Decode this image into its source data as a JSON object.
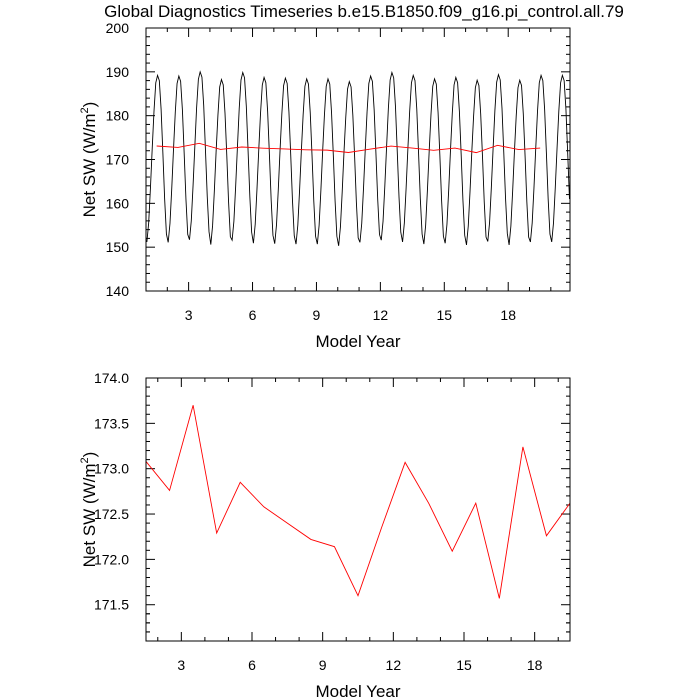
{
  "title": "Global Diagnostics Timeseries b.e15.B1850.f09_g16.pi_control.all.79",
  "colors": {
    "monthly": "#000000",
    "annual": "#ff0000",
    "frame": "#000000"
  },
  "chart_data": [
    {
      "type": "line",
      "xlabel": "Model Year",
      "ylabel": "Net SW (W/m",
      "ylabel_sup": "2",
      "ylabel_close": ")",
      "xlim": [
        1.0,
        20.9
      ],
      "ylim": [
        140,
        200
      ],
      "xticks": [
        3,
        6,
        9,
        12,
        15,
        18
      ],
      "xtick_labels": [
        "3",
        "6",
        "9",
        "12",
        "15",
        "18"
      ],
      "yticks": [
        140,
        150,
        160,
        170,
        180,
        190,
        200
      ],
      "ytick_labels": [
        "140",
        "150",
        "160",
        "170",
        "180",
        "190",
        "200"
      ],
      "series": [
        {
          "key": "monthly",
          "color": "#000000",
          "seasonal_cycle": [
            151.2,
            155.5,
            163.5,
            172.5,
            181.0,
            187.5,
            189.2,
            188.0,
            181.5,
            171.5,
            161.0,
            153.0
          ],
          "year_offsets": [
            0.0,
            -0.1,
            0.5,
            -0.6,
            0.4,
            -0.3,
            -0.4,
            -0.5,
            -0.5,
            -0.9,
            -0.1,
            0.4,
            0.0,
            -0.5,
            -0.3,
            -0.7,
            0.1,
            -0.7,
            0.0,
            0.0
          ],
          "start_year": 1.0,
          "years": 20
        },
        {
          "key": "annual",
          "color": "#ff0000",
          "x": [
            1.5,
            2.5,
            3.5,
            4.5,
            5.5,
            6.5,
            7.5,
            8.5,
            9.5,
            10.5,
            11.5,
            12.5,
            13.5,
            14.5,
            15.5,
            16.5,
            17.5,
            18.5,
            19.5
          ],
          "values": [
            173.08,
            172.76,
            173.7,
            172.29,
            172.85,
            172.58,
            172.4,
            172.22,
            172.14,
            171.6,
            172.35,
            173.07,
            172.62,
            172.09,
            172.62,
            171.57,
            173.24,
            172.26,
            172.62
          ]
        }
      ]
    },
    {
      "type": "line",
      "xlabel": "Model Year",
      "ylabel": "Net SW (W/m",
      "ylabel_sup": "2",
      "ylabel_close": ")",
      "xlim": [
        1.5,
        19.5
      ],
      "ylim": [
        171.1,
        174.0
      ],
      "xticks": [
        3,
        6,
        9,
        12,
        15,
        18
      ],
      "xtick_labels": [
        "3",
        "6",
        "9",
        "12",
        "15",
        "18"
      ],
      "yticks": [
        171.5,
        172.0,
        172.5,
        173.0,
        173.5,
        174.0
      ],
      "ytick_labels": [
        "171.5",
        "172.0",
        "172.5",
        "173.0",
        "173.5",
        "174.0"
      ],
      "series": [
        {
          "key": "annual",
          "color": "#ff0000",
          "x": [
            1.5,
            2.5,
            3.5,
            4.5,
            5.5,
            6.5,
            7.5,
            8.5,
            9.5,
            10.5,
            11.5,
            12.5,
            13.5,
            14.5,
            15.5,
            16.5,
            17.5,
            18.5,
            19.5
          ],
          "values": [
            173.08,
            172.76,
            173.7,
            172.29,
            172.85,
            172.58,
            172.4,
            172.22,
            172.14,
            171.6,
            172.35,
            173.07,
            172.62,
            172.09,
            172.62,
            171.57,
            173.24,
            172.26,
            172.62
          ]
        }
      ]
    }
  ]
}
